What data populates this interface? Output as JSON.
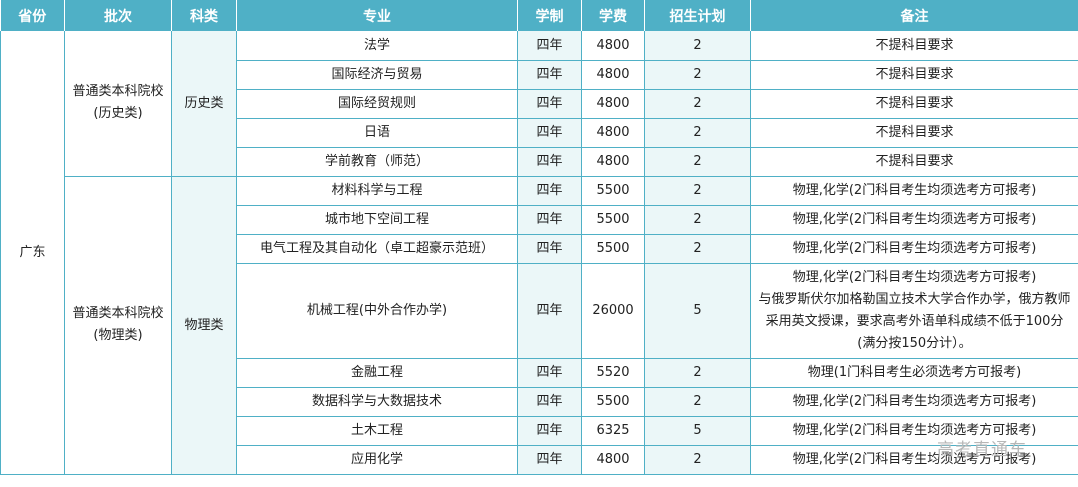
{
  "headers": [
    "省份",
    "批次",
    "科类",
    "专业",
    "学制",
    "学费",
    "招生计划",
    "备注"
  ],
  "province": "广东",
  "groups": [
    {
      "batch": [
        "普通类本科院校",
        "(历史类)"
      ],
      "category": "历史类",
      "rows": [
        {
          "major": "法学",
          "duration": "四年",
          "fee": "4800",
          "plan": "2",
          "note": "不提科目要求"
        },
        {
          "major": "国际经济与贸易",
          "duration": "四年",
          "fee": "4800",
          "plan": "2",
          "note": "不提科目要求"
        },
        {
          "major": "国际经贸规则",
          "duration": "四年",
          "fee": "4800",
          "plan": "2",
          "note": "不提科目要求"
        },
        {
          "major": "日语",
          "duration": "四年",
          "fee": "4800",
          "plan": "2",
          "note": "不提科目要求"
        },
        {
          "major": "学前教育（师范）",
          "duration": "四年",
          "fee": "4800",
          "plan": "2",
          "note": "不提科目要求"
        }
      ]
    },
    {
      "batch": [
        "普通类本科院校",
        "(物理类)"
      ],
      "category": "物理类",
      "rows": [
        {
          "major": "材料科学与工程",
          "duration": "四年",
          "fee": "5500",
          "plan": "2",
          "note": "物理,化学(2门科目考生均须选考方可报考)"
        },
        {
          "major": "城市地下空间工程",
          "duration": "四年",
          "fee": "5500",
          "plan": "2",
          "note": "物理,化学(2门科目考生均须选考方可报考)"
        },
        {
          "major": "电气工程及其自动化（卓工超豪示范班）",
          "duration": "四年",
          "fee": "5500",
          "plan": "2",
          "note": "物理,化学(2门科目考生均须选考方可报考)"
        },
        {
          "major": "机械工程(中外合作办学)",
          "duration": "四年",
          "fee": "26000",
          "plan": "5",
          "note_lines": [
            "物理,化学(2门科目考生均须选考方可报考)",
            "与俄罗斯伏尔加格勒国立技术大学合作办学，俄方教师",
            "采用英文授课，要求高考外语单科成绩不低于100分",
            "(满分按150分计）。"
          ]
        },
        {
          "major": "金融工程",
          "duration": "四年",
          "fee": "5520",
          "plan": "2",
          "note": "物理(1门科目考生必须选考方可报考)"
        },
        {
          "major": "数据科学与大数据技术",
          "duration": "四年",
          "fee": "5500",
          "plan": "2",
          "note": "物理,化学(2门科目考生均须选考方可报考)"
        },
        {
          "major": "土木工程",
          "duration": "四年",
          "fee": "6325",
          "plan": "5",
          "note": "物理,化学(2门科目考生均须选考方可报考)"
        },
        {
          "major": "应用化学",
          "duration": "四年",
          "fee": "4800",
          "plan": "2",
          "note": "物理,化学(2门科目考生均须选考方可报考)"
        }
      ]
    }
  ],
  "watermark": "高考直通车"
}
